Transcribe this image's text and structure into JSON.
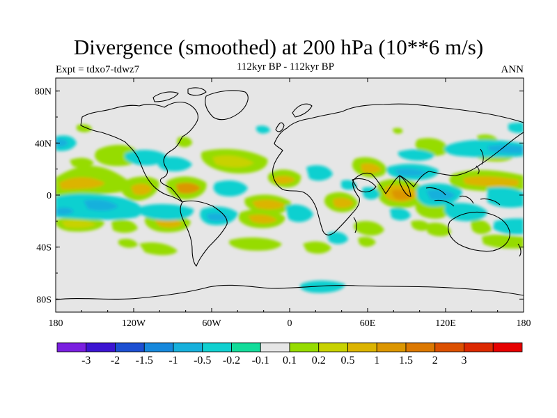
{
  "title": "Divergence (smoothed) at 200 hPa (10**6 m/s)",
  "experiment": "Expt = tdxo7-tdwz7",
  "period": "112kyr BP - 112kyr BP",
  "season": "ANN",
  "axes": {
    "lat_ticks": [
      {
        "value": 80,
        "label": "80N"
      },
      {
        "value": 40,
        "label": "40N"
      },
      {
        "value": 0,
        "label": "0"
      },
      {
        "value": -40,
        "label": "40S"
      },
      {
        "value": -80,
        "label": "80S"
      }
    ],
    "lon_ticks": [
      {
        "value": -180,
        "label": "180"
      },
      {
        "value": -120,
        "label": "120W"
      },
      {
        "value": -60,
        "label": "60W"
      },
      {
        "value": 0,
        "label": "0"
      },
      {
        "value": 60,
        "label": "60E"
      },
      {
        "value": 120,
        "label": "120E"
      },
      {
        "value": 180,
        "label": "180"
      }
    ]
  },
  "colorbar": {
    "colors": [
      "#7a1fe0",
      "#3c14d2",
      "#1c4fd2",
      "#1688dc",
      "#16b0dc",
      "#10d0d0",
      "#12dc9a",
      "#e6e6e6",
      "#96dc00",
      "#c8d200",
      "#dcb400",
      "#dc9600",
      "#dc7800",
      "#dc5000",
      "#dc2800",
      "#e60000"
    ],
    "labels": [
      "-3",
      "-2",
      "-1.5",
      "-1",
      "-0.5",
      "-0.2",
      "-0.1",
      "0.1",
      "0.2",
      "0.5",
      "1",
      "1.5",
      "2",
      "3"
    ]
  },
  "map_background": "#e6e6e6"
}
